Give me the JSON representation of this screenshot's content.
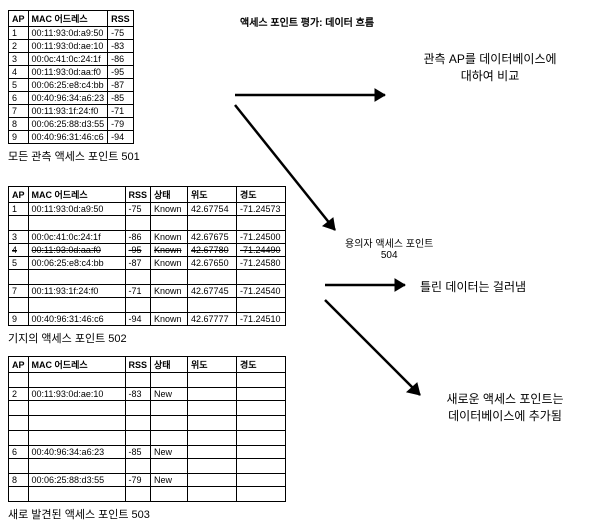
{
  "title_top": "액세스 포인트 평가: 데이터 흐름",
  "table1": {
    "headers": {
      "ap": "AP",
      "mac": "MAC 어드레스",
      "rss": "RSS"
    },
    "rows": [
      {
        "ap": "1",
        "mac": "00:11:93:0d:a9:50",
        "rss": "-75"
      },
      {
        "ap": "2",
        "mac": "00:11:93:0d:ae:10",
        "rss": "-83"
      },
      {
        "ap": "3",
        "mac": "00:0c:41:0c:24:1f",
        "rss": "-86"
      },
      {
        "ap": "4",
        "mac": "00:11:93:0d:aa:f0",
        "rss": "-95"
      },
      {
        "ap": "5",
        "mac": "00:06:25:e8:c4:bb",
        "rss": "-87"
      },
      {
        "ap": "6",
        "mac": "00:40:96:34:a6:23",
        "rss": "-85"
      },
      {
        "ap": "7",
        "mac": "00:11:93:1f:24:f0",
        "rss": "-71"
      },
      {
        "ap": "8",
        "mac": "00:06:25:88:d3:55",
        "rss": "-79"
      },
      {
        "ap": "9",
        "mac": "00:40:96:31:46:c6",
        "rss": "-94"
      }
    ],
    "caption": "모든 관측 액세스 포인트  501"
  },
  "table2": {
    "headers": {
      "ap": "AP",
      "mac": "MAC 어드레스",
      "rss": "RSS",
      "status": "상태",
      "lat": "위도",
      "lon": "경도"
    },
    "rows": [
      {
        "ap": "1",
        "mac": "00:11:93:0d:a9:50",
        "rss": "-75",
        "status": "Known",
        "lat": "42.67754",
        "lon": "-71.24573",
        "blank": false,
        "struck": false
      },
      {
        "ap": "",
        "mac": "",
        "rss": "",
        "status": "",
        "lat": "",
        "lon": "",
        "blank": true,
        "struck": false
      },
      {
        "ap": "3",
        "mac": "00:0c:41:0c:24:1f",
        "rss": "-86",
        "status": "Known",
        "lat": "42.67675",
        "lon": "-71.24500",
        "blank": false,
        "struck": false
      },
      {
        "ap": "4",
        "mac": "00:11:93:0d:aa:f0",
        "rss": "-95",
        "status": "Known",
        "lat": "42.67780",
        "lon": "-71.24490",
        "blank": false,
        "struck": true
      },
      {
        "ap": "5",
        "mac": "00:06:25:e8:c4:bb",
        "rss": "-87",
        "status": "Known",
        "lat": "42.67650",
        "lon": "-71.24580",
        "blank": false,
        "struck": false
      },
      {
        "ap": "",
        "mac": "",
        "rss": "",
        "status": "",
        "lat": "",
        "lon": "",
        "blank": true,
        "struck": false
      },
      {
        "ap": "7",
        "mac": "00:11:93:1f:24:f0",
        "rss": "-71",
        "status": "Known",
        "lat": "42.67745",
        "lon": "-71.24540",
        "blank": false,
        "struck": false
      },
      {
        "ap": "",
        "mac": "",
        "rss": "",
        "status": "",
        "lat": "",
        "lon": "",
        "blank": true,
        "struck": false
      },
      {
        "ap": "9",
        "mac": "00:40:96:31:46:c6",
        "rss": "-94",
        "status": "Known",
        "lat": "42.67777",
        "lon": "-71.24510",
        "blank": false,
        "struck": false
      }
    ],
    "caption": "기지의 액세스 포인트  502"
  },
  "table3": {
    "headers": {
      "ap": "AP",
      "mac": "MAC 어드레스",
      "rss": "RSS",
      "status": "상태",
      "lat": "위도",
      "lon": "경도"
    },
    "rows": [
      {
        "ap": "",
        "mac": "",
        "rss": "",
        "status": "",
        "blank": true
      },
      {
        "ap": "2",
        "mac": "00:11:93:0d:ae:10",
        "rss": "-83",
        "status": "New",
        "blank": false
      },
      {
        "ap": "",
        "mac": "",
        "rss": "",
        "status": "",
        "blank": true
      },
      {
        "ap": "",
        "mac": "",
        "rss": "",
        "status": "",
        "blank": true
      },
      {
        "ap": "",
        "mac": "",
        "rss": "",
        "status": "",
        "blank": true
      },
      {
        "ap": "6",
        "mac": "00:40:96:34:a6:23",
        "rss": "-85",
        "status": "New",
        "blank": false
      },
      {
        "ap": "",
        "mac": "",
        "rss": "",
        "status": "",
        "blank": true
      },
      {
        "ap": "8",
        "mac": "00:06:25:88:d3:55",
        "rss": "-79",
        "status": "New",
        "blank": false
      },
      {
        "ap": "",
        "mac": "",
        "rss": "",
        "status": "",
        "blank": true
      }
    ],
    "caption": "새로 발견된 액세스 포인트  503"
  },
  "anno1_line1": "관측 AP를 데이터베이스에",
  "anno1_line2": "대하여 비교",
  "anno2_line1": "용의자 액세스 포인트",
  "anno2_line2": "504",
  "anno3": "틀린 데이터는 걸러냄",
  "anno4_line1": "새로운 액세스 포인트는",
  "anno4_line2": "데이터베이스에 추가됨"
}
